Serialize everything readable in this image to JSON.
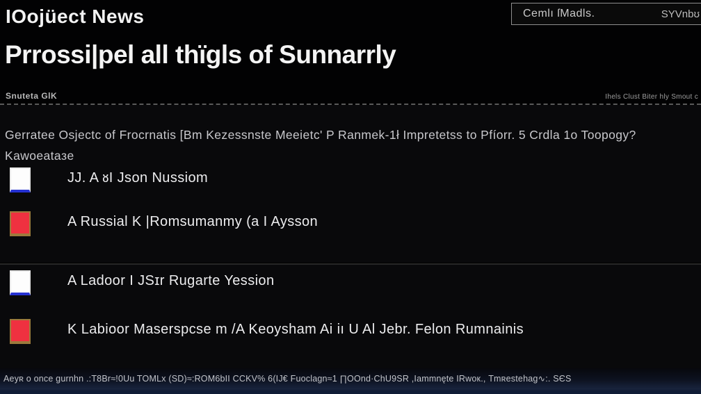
{
  "header": {
    "app_title": "IOojüect News",
    "toolbar_box": {
      "left_label": "Cemlı ſMadls.",
      "right_label": "SYVnbʊ"
    },
    "page_title": "Prrossi|pel all thïgls of Sunnarrly",
    "meta_left": "Snuteta GlK",
    "meta_right": "Ihels Clust Biter hly Smout c"
  },
  "main": {
    "description_line1": "Gerratee Osjectc of Frocrnatis [Bm Kezessnste Meeietc' P Ranmek-1ł Impretetss to Pfíorr. 5 Crdla 1o Toopogy?",
    "description_line2": "Kawoeataзe",
    "items": [
      {
        "label": "JJ. A ᴕI Json Nussiom",
        "swatch_type": "white-blue",
        "swatch": {
          "fill": "#fdfdfd",
          "border": "#e9e9e9",
          "edge": "#2531d2"
        }
      },
      {
        "label": "A Russial K |Romsumanmy (a I Aysson",
        "swatch_type": "red",
        "swatch": {
          "fill": "#ef3140",
          "border": "#9c7a3c",
          "edge": "#9c7a3c"
        }
      },
      {
        "label": "A Ladoor I JSɪr Rugarte Yession",
        "swatch_type": "white-blue",
        "swatch": {
          "fill": "#fdfdfd",
          "border": "#e9e9e9",
          "edge": "#2531d2"
        }
      },
      {
        "label": "K Labioor Maserspcse m /A Keoysham Ai iı U Al Jebr. Felon Rumnainis",
        "swatch_type": "red",
        "swatch": {
          "fill": "#ef3140",
          "border": "#9c7a3c",
          "edge": "#9c7a3c"
        }
      }
    ]
  },
  "footer": {
    "status_text": "Aeyʀ o once gurnhn .:T8Br≈!0Uu TOMLx (SD)≈:ROM6bII CCKV% 6(IJ€ Fuoclagn≈1 ∏OOnd·ChU9SR ,Iammnęte IRwoк., Tmʀestehag∿:. SЄS"
  },
  "colors": {
    "background": "#030304",
    "accent_blue": "#2531d2",
    "accent_red": "#ef3140",
    "footer_navy": "#18233d"
  }
}
